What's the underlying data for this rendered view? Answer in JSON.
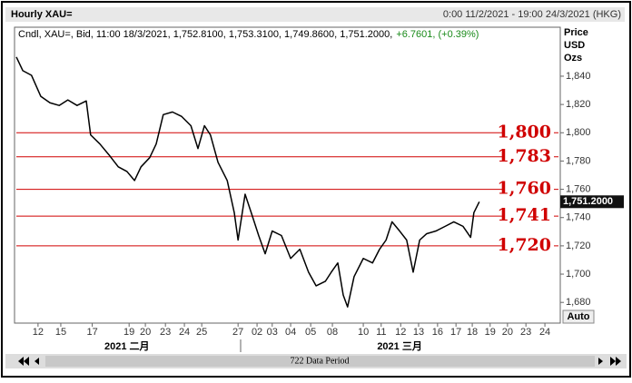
{
  "header": {
    "title": "Hourly XAU=",
    "range": "0:00 11/2/2021 - 19:00 24/3/2021 (HKG)"
  },
  "chart_data": {
    "type": "line",
    "info": "Cndl, XAU=, Bid, 11:00 18/3/2021, 1,752.8100, 1,753.3100, 1,749.8600, 1,751.2000,",
    "change": "+6.7601, (+0.39%)",
    "y_axis_title": [
      "Price",
      "USD",
      "Ozs"
    ],
    "x": [
      0,
      1.2,
      2.8,
      4.5,
      6.2,
      7.9,
      9.5,
      11.2,
      12.9,
      13.7,
      15.4,
      17.1,
      18.8,
      20.4,
      21.8,
      23,
      24.6,
      25.8,
      27.1,
      28.8,
      30.5,
      32.2,
      33.5,
      34.7,
      35.8,
      37.2,
      38.9,
      40.2,
      40.9,
      42.2,
      43.6,
      44.7,
      45.9,
      47.2,
      48.9,
      50.6,
      52.3,
      53.9,
      55.3,
      57,
      58.1,
      59.3,
      60.3,
      61.1,
      62.3,
      64,
      65.7,
      67,
      68.2,
      69.3,
      70.7,
      72,
      73.2,
      74.4,
      75.7,
      77.4,
      79.1,
      80.7,
      82.4,
      83.8,
      84.4,
      85.4
    ],
    "series": [
      {
        "color": "#000000",
        "values": [
          1853.6,
          1843.9,
          1840.6,
          1825.8,
          1821.2,
          1819.3,
          1823.2,
          1819.3,
          1822.5,
          1798.5,
          1792.1,
          1784.3,
          1775.9,
          1772.6,
          1766.2,
          1775.9,
          1782.4,
          1792.1,
          1812.8,
          1814.7,
          1811.5,
          1805,
          1788.8,
          1805,
          1798.5,
          1779.1,
          1766.2,
          1743.5,
          1724.1,
          1756.5,
          1740.3,
          1727.3,
          1714.4,
          1730.5,
          1727.3,
          1711.1,
          1717.6,
          1701.4,
          1691.7,
          1694.9,
          1701.4,
          1707.9,
          1685.2,
          1676.8,
          1698.2,
          1711.1,
          1707.9,
          1717.6,
          1724.1,
          1737,
          1730.5,
          1724.1,
          1701.4,
          1724.1,
          1728.6,
          1730.5,
          1733.8,
          1737,
          1733.8,
          1726,
          1743.5,
          1751.2
        ]
      }
    ],
    "xlim": [
      0,
      100
    ],
    "ylim": [
      1666,
      1874
    ],
    "xticks": [
      {
        "value": 4,
        "label": "12"
      },
      {
        "value": 8.2,
        "label": "15"
      },
      {
        "value": 14,
        "label": "17"
      },
      {
        "value": 20.8,
        "label": "19"
      },
      {
        "value": 23.8,
        "label": "20"
      },
      {
        "value": 27.5,
        "label": "23"
      },
      {
        "value": 31,
        "label": "24"
      },
      {
        "value": 34.2,
        "label": "25"
      },
      {
        "value": 40.9,
        "label": "27"
      },
      {
        "value": 44.4,
        "label": "02"
      },
      {
        "value": 47.2,
        "label": "03"
      },
      {
        "value": 50.6,
        "label": "04"
      },
      {
        "value": 54.3,
        "label": "05"
      },
      {
        "value": 58.3,
        "label": "08"
      },
      {
        "value": 64,
        "label": "10"
      },
      {
        "value": 67.3,
        "label": "11"
      },
      {
        "value": 70.9,
        "label": "12"
      },
      {
        "value": 74.2,
        "label": "13"
      },
      {
        "value": 77.7,
        "label": "16"
      },
      {
        "value": 81.1,
        "label": "17"
      },
      {
        "value": 84.1,
        "label": "18"
      },
      {
        "value": 87.4,
        "label": "19"
      },
      {
        "value": 90.6,
        "label": "20"
      },
      {
        "value": 94,
        "label": "23"
      },
      {
        "value": 97.5,
        "label": "24"
      }
    ],
    "yticks": [
      {
        "value": 1680,
        "label": "1,680"
      },
      {
        "value": 1700,
        "label": "1,700"
      },
      {
        "value": 1720,
        "label": "1,720"
      },
      {
        "value": 1740,
        "label": "1,740"
      },
      {
        "value": 1760,
        "label": "1,760"
      },
      {
        "value": 1780,
        "label": "1,780"
      },
      {
        "value": 1800,
        "label": "1,800"
      },
      {
        "value": 1820,
        "label": "1,820"
      },
      {
        "value": 1840,
        "label": "1,840"
      }
    ],
    "hlines": [
      {
        "value": 1800,
        "label": "1,800"
      },
      {
        "value": 1783,
        "label": "1,783"
      },
      {
        "value": 1760,
        "label": "1,760"
      },
      {
        "value": 1741,
        "label": "1,741"
      },
      {
        "value": 1720,
        "label": "1,720"
      }
    ],
    "hline_color": "#d00000",
    "last_price": {
      "value": 1751.2,
      "label": "1,751.2000"
    },
    "month_labels": [
      {
        "value": 20.4,
        "label": "2021 二月"
      },
      {
        "value": 70.7,
        "label": "2021 三月"
      }
    ],
    "grid": false
  },
  "controls": {
    "auto": "Auto",
    "scroll_label": "722 Data Period"
  }
}
